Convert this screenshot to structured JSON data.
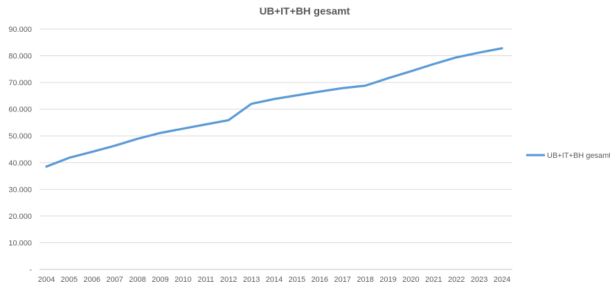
{
  "chart_data": {
    "type": "line",
    "title": "UB+IT+BH gesamt",
    "xlabel": "",
    "ylabel": "",
    "x": [
      2004,
      2005,
      2006,
      2007,
      2008,
      2009,
      2010,
      2011,
      2012,
      2013,
      2014,
      2015,
      2016,
      2017,
      2018,
      2019,
      2020,
      2021,
      2022,
      2023,
      2024
    ],
    "series": [
      {
        "name": "UB+IT+BH gesamt",
        "values": [
          38500,
          41800,
          44000,
          46300,
          48900,
          51100,
          52700,
          54300,
          55900,
          62000,
          63800,
          65200,
          66600,
          67900,
          68800,
          71600,
          74200,
          76900,
          79400,
          81200,
          82800
        ]
      }
    ],
    "ylim": [
      0,
      90000
    ],
    "y_ticks": [
      {
        "value": 0,
        "label": "-"
      },
      {
        "value": 10000,
        "label": "10.000"
      },
      {
        "value": 20000,
        "label": "20.000"
      },
      {
        "value": 30000,
        "label": "30.000"
      },
      {
        "value": 40000,
        "label": "40.000"
      },
      {
        "value": 50000,
        "label": "50.000"
      },
      {
        "value": 60000,
        "label": "60.000"
      },
      {
        "value": 70000,
        "label": "70.000"
      },
      {
        "value": 80000,
        "label": "80.000"
      },
      {
        "value": 90000,
        "label": "90.000"
      }
    ],
    "grid": true,
    "legend": {
      "position": "right",
      "entries": [
        "UB+IT+BH gesamt"
      ]
    },
    "colors": {
      "line": "#5b9bd5",
      "gridline": "#d9d9d9",
      "axis_line": "#bfbfbf",
      "axis_text": "#595959",
      "title_text": "#595959",
      "background": "#ffffff"
    }
  }
}
